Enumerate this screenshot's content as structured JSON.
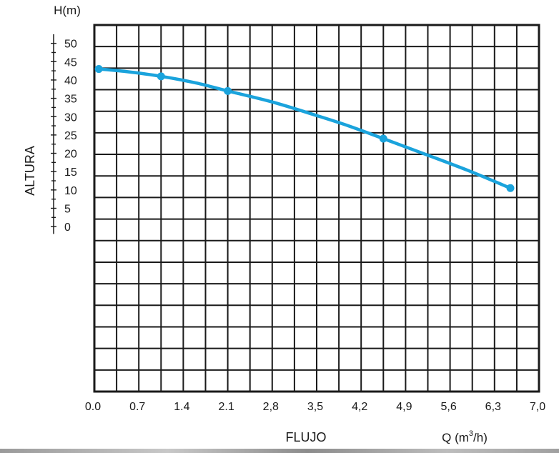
{
  "chart_data": {
    "type": "line",
    "title": "",
    "ylabel_rotated": "ALTURA",
    "yunit": "H(m)",
    "xlabel": "FLUJO",
    "xunit_prefix": "Q (m",
    "xunit_sup": "3",
    "xunit_suffix": "/h)",
    "x_tick_labels": [
      "0.0",
      "0.7",
      "1.4",
      "2.1",
      "2,8",
      "3,5",
      "4,2",
      "4,9",
      "5,6",
      "6,3",
      "7,0"
    ],
    "y_tick_labels": [
      "0",
      "5",
      "10",
      "15",
      "20",
      "25",
      "30",
      "35",
      "40",
      "45",
      "50"
    ],
    "xlim": [
      0,
      7.0
    ],
    "ylim": [
      -45,
      55
    ],
    "grid": true,
    "series": [
      {
        "color": "#1aa3dc",
        "marker_points": [
          {
            "x": 0.07,
            "y": 43
          },
          {
            "x": 1.05,
            "y": 41
          },
          {
            "x": 2.1,
            "y": 37
          },
          {
            "x": 4.55,
            "y": 24
          },
          {
            "x": 6.55,
            "y": 10.5
          }
        ],
        "curve": [
          {
            "x": 0.07,
            "y": 43
          },
          {
            "x": 0.5,
            "y": 42.3
          },
          {
            "x": 1.05,
            "y": 41
          },
          {
            "x": 1.6,
            "y": 39.2
          },
          {
            "x": 2.1,
            "y": 37
          },
          {
            "x": 2.8,
            "y": 34
          },
          {
            "x": 3.5,
            "y": 30.3
          },
          {
            "x": 4.0,
            "y": 27.5
          },
          {
            "x": 4.55,
            "y": 24
          },
          {
            "x": 5.2,
            "y": 19.8
          },
          {
            "x": 5.9,
            "y": 15.2
          },
          {
            "x": 6.55,
            "y": 10.5
          }
        ]
      }
    ]
  }
}
